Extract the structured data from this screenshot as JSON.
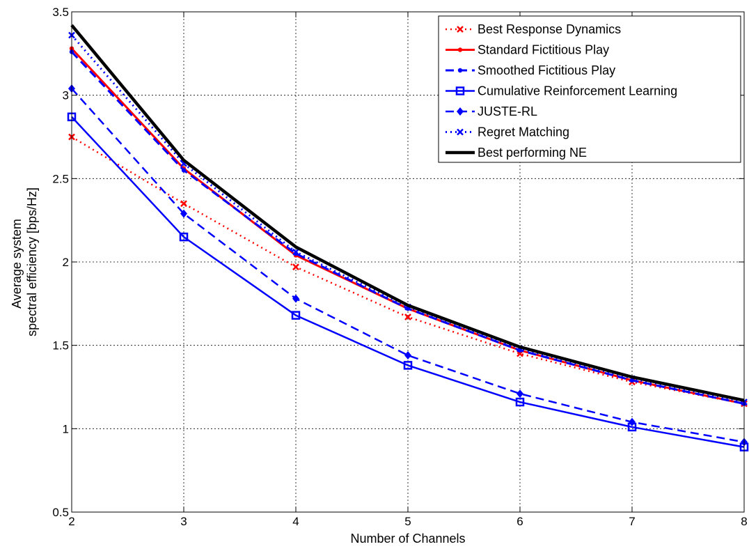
{
  "chart_data": {
    "type": "line",
    "title": "",
    "xlabel": "Number of Channels",
    "ylabel_lines": [
      "Average system",
      "spectral efficiency [bps/Hz]"
    ],
    "xlim": [
      2,
      8
    ],
    "ylim": [
      0.5,
      3.5
    ],
    "x_ticks": [
      "2",
      "3",
      "4",
      "5",
      "6",
      "7",
      "8"
    ],
    "y_ticks": [
      "0.5",
      "1",
      "1.5",
      "2",
      "2.5",
      "3",
      "3.5"
    ],
    "grid": true,
    "legend_position": "top-right",
    "x": [
      2,
      3,
      4,
      5,
      6,
      7,
      8
    ],
    "series": [
      {
        "name": "Best Response Dynamics",
        "color": "#ff0000",
        "dash": "dotted",
        "marker": "x",
        "width": 2.5,
        "values": [
          2.75,
          2.35,
          1.97,
          1.67,
          1.45,
          1.28,
          1.15
        ]
      },
      {
        "name": "Standard Fictitious Play",
        "color": "#ff0000",
        "dash": "solid",
        "marker": "dot",
        "width": 3,
        "values": [
          3.28,
          2.56,
          2.04,
          1.72,
          1.47,
          1.29,
          1.15
        ]
      },
      {
        "name": "Smoothed Fictitious Play",
        "color": "#0000ff",
        "dash": "dashed",
        "marker": "dot",
        "width": 3,
        "values": [
          3.26,
          2.55,
          2.05,
          1.72,
          1.47,
          1.29,
          1.15
        ]
      },
      {
        "name": "Cumulative Reinforcement Learning",
        "color": "#0000ff",
        "dash": "solid",
        "marker": "square",
        "width": 2.5,
        "values": [
          2.87,
          2.15,
          1.68,
          1.38,
          1.16,
          1.01,
          0.89
        ]
      },
      {
        "name": "JUSTE-RL",
        "color": "#0000ff",
        "dash": "dashed",
        "marker": "diamond",
        "width": 2.5,
        "values": [
          3.04,
          2.29,
          1.78,
          1.44,
          1.21,
          1.04,
          0.92
        ]
      },
      {
        "name": "Regret Matching",
        "color": "#0000ff",
        "dash": "dotted",
        "marker": "x",
        "width": 3,
        "values": [
          3.36,
          2.59,
          2.06,
          1.73,
          1.48,
          1.3,
          1.16
        ]
      },
      {
        "name": "Best performing NE",
        "color": "#000000",
        "dash": "solid",
        "marker": "none",
        "width": 4.5,
        "values": [
          3.42,
          2.61,
          2.09,
          1.74,
          1.49,
          1.31,
          1.17
        ]
      }
    ]
  }
}
